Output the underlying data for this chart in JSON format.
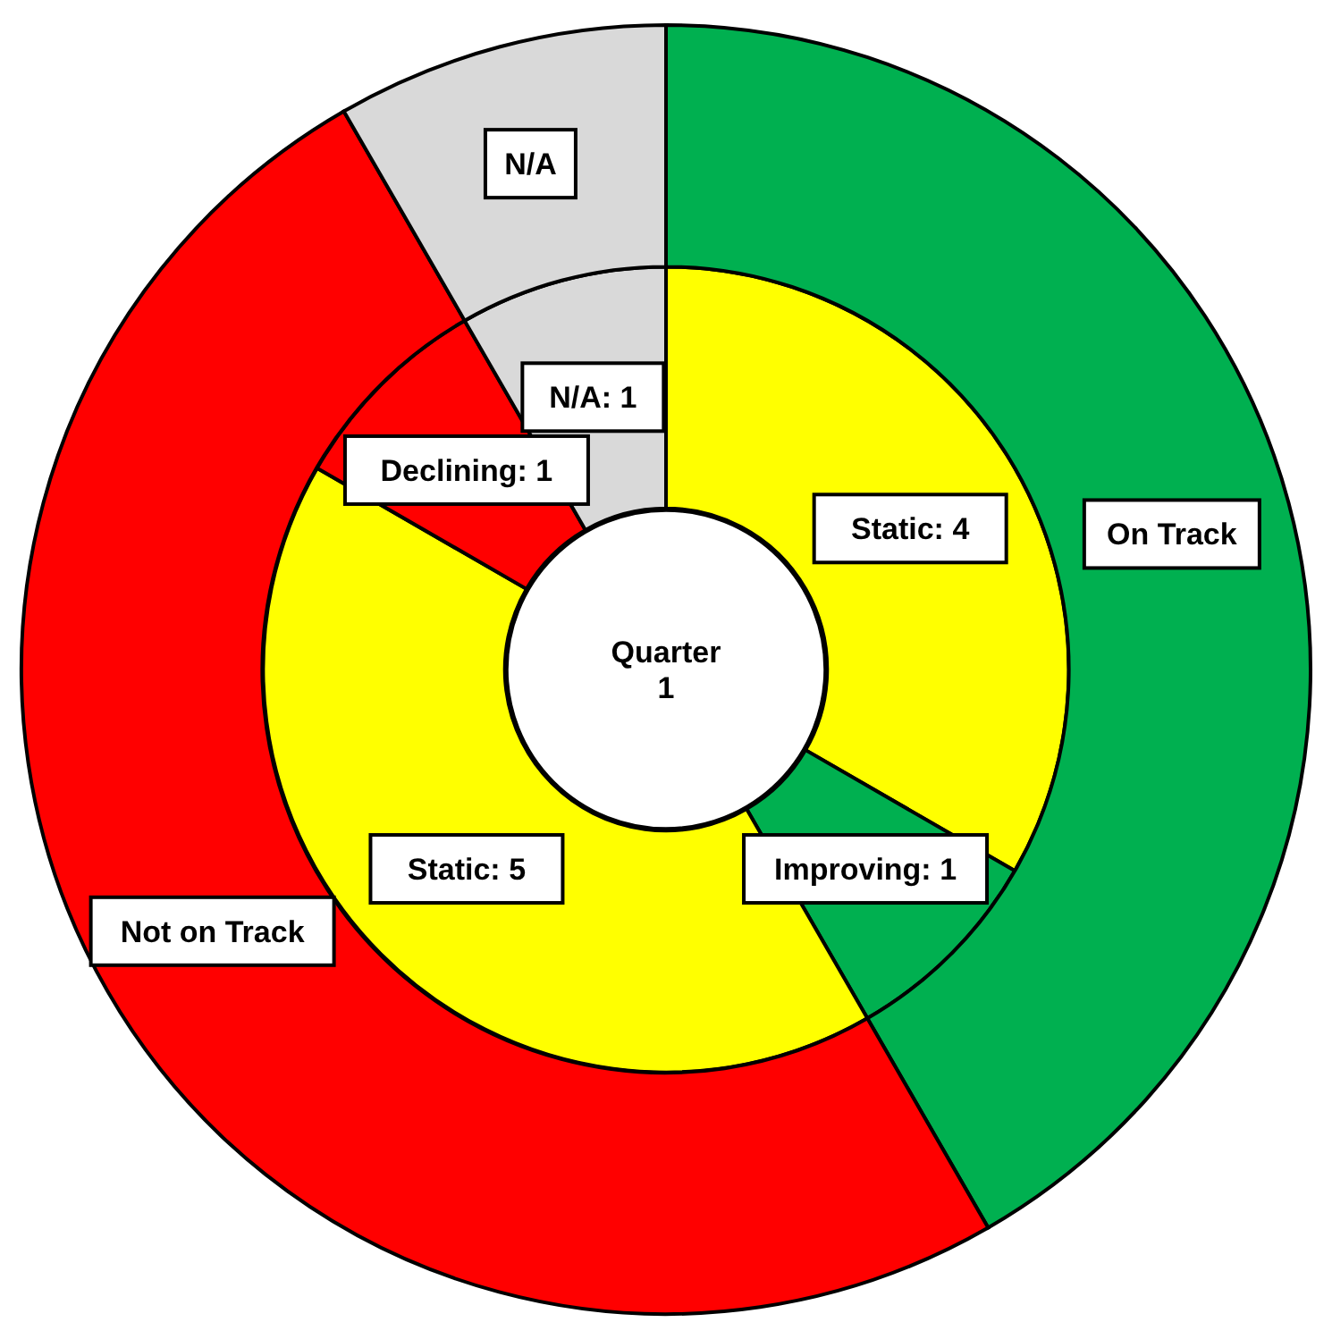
{
  "chart_data": [
    {
      "type": "donut",
      "title": "Quarter 1",
      "categories": [
        "Static: 4",
        "Improving: 1",
        "Static: 5",
        "Declining: 1",
        "N/A: 1"
      ],
      "values": [
        4,
        1,
        5,
        1,
        1
      ],
      "colors": [
        "#ffff00",
        "#00b050",
        "#ffff00",
        "#ff0000",
        "#d9d9d9"
      ]
    },
    {
      "type": "donut",
      "categories": [
        "On Track",
        "Not on Track",
        "N/A"
      ],
      "values": [
        41.67,
        50,
        8.33
      ],
      "colors": [
        "#00b050",
        "#ff0000",
        "#d9d9d9"
      ]
    }
  ]
}
